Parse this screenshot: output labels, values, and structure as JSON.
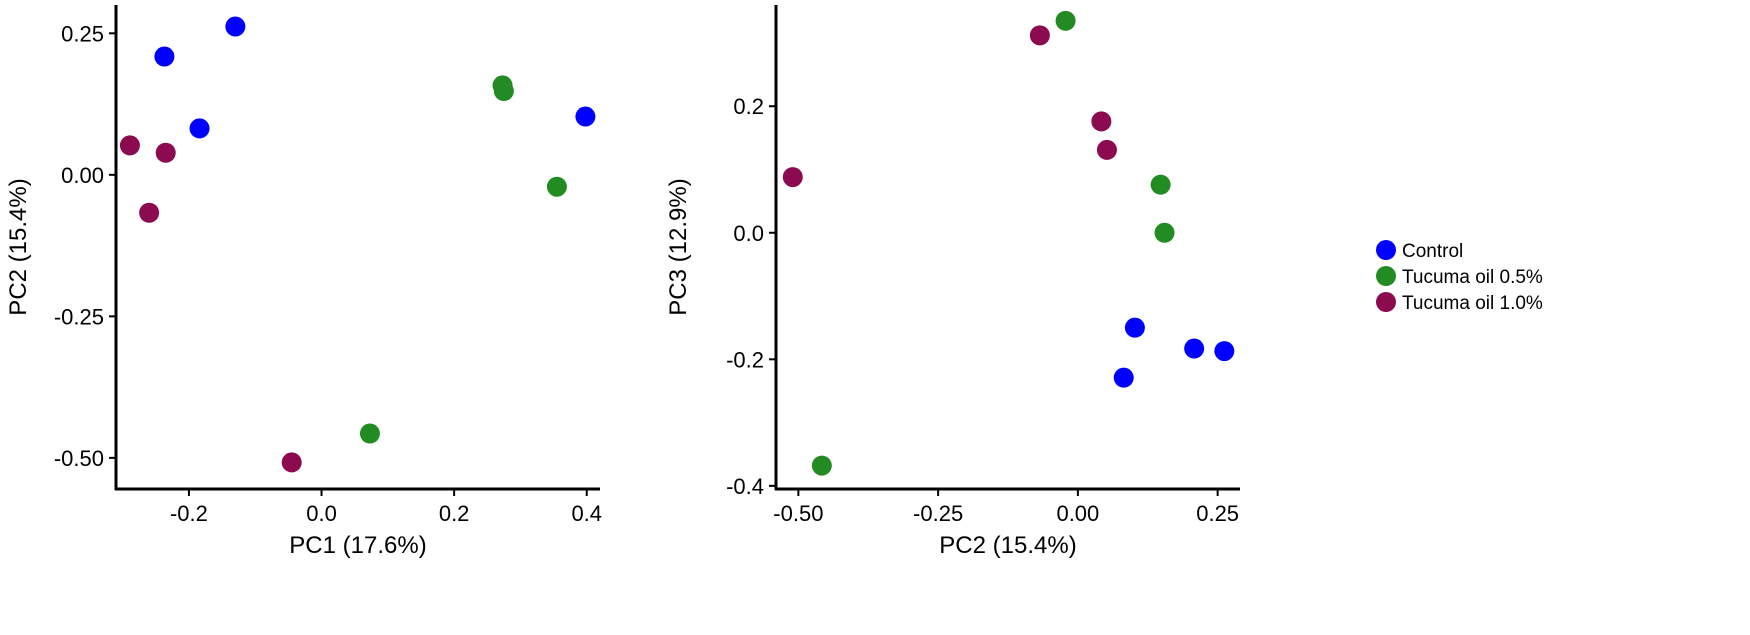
{
  "legend": {
    "placement": "right",
    "entries": [
      {
        "label": "Control",
        "color": "#0000ff"
      },
      {
        "label": "Tucuma oil 0.5%",
        "color": "#228b22"
      },
      {
        "label": "Tucuma oil 1.0%",
        "color": "#8b0a50"
      }
    ]
  },
  "chart_data": [
    {
      "type": "scatter",
      "title": "",
      "xlabel": "PC1 (17.6%)",
      "ylabel": "PC2 (15.4%)",
      "xlim": [
        -0.31,
        0.42
      ],
      "ylim": [
        -0.555,
        0.3
      ],
      "xticks": [
        -0.2,
        0.0,
        0.2,
        0.4
      ],
      "xtick_labels": [
        "-0.2",
        "0.0",
        "0.2",
        "0.4"
      ],
      "yticks": [
        -0.5,
        -0.25,
        0.0,
        0.25
      ],
      "ytick_labels": [
        "-0.50",
        "-0.25",
        "0.00",
        "0.25"
      ],
      "grid": false,
      "series": [
        {
          "name": "Control",
          "color": "#0000ff",
          "points": [
            [
              -0.13,
              0.262
            ],
            [
              -0.237,
              0.209
            ],
            [
              -0.184,
              0.082
            ],
            [
              0.398,
              0.103
            ]
          ]
        },
        {
          "name": "Tucuma oil 0.5%",
          "color": "#228b22",
          "points": [
            [
              0.273,
              0.158
            ],
            [
              0.275,
              0.148
            ],
            [
              0.355,
              -0.021
            ],
            [
              0.073,
              -0.457
            ]
          ]
        },
        {
          "name": "Tucuma oil 1.0%",
          "color": "#8b0a50",
          "points": [
            [
              -0.289,
              0.052
            ],
            [
              -0.235,
              0.039
            ],
            [
              -0.26,
              -0.067
            ],
            [
              -0.045,
              -0.508
            ]
          ]
        }
      ]
    },
    {
      "type": "scatter",
      "title": "",
      "xlabel": "PC2 (15.4%)",
      "ylabel": "PC3 (12.9%)",
      "xlim": [
        -0.54,
        0.29
      ],
      "ylim": [
        -0.405,
        0.36
      ],
      "xticks": [
        -0.5,
        -0.25,
        0.0,
        0.25
      ],
      "xtick_labels": [
        "-0.50",
        "-0.25",
        "0.00",
        "0.25"
      ],
      "yticks": [
        -0.4,
        -0.2,
        0.0,
        0.2
      ],
      "ytick_labels": [
        "-0.4",
        "-0.2",
        "0.0",
        "0.2"
      ],
      "grid": false,
      "series": [
        {
          "name": "Control",
          "color": "#0000ff",
          "points": [
            [
              0.102,
              -0.15
            ],
            [
              0.208,
              -0.183
            ],
            [
              0.262,
              -0.187
            ],
            [
              0.082,
              -0.229
            ]
          ]
        },
        {
          "name": "Tucuma oil 0.5%",
          "color": "#228b22",
          "points": [
            [
              -0.022,
              0.335
            ],
            [
              0.148,
              0.076
            ],
            [
              0.155,
              0.0
            ],
            [
              -0.458,
              -0.368
            ]
          ]
        },
        {
          "name": "Tucuma oil 1.0%",
          "color": "#8b0a50",
          "points": [
            [
              -0.068,
              0.312
            ],
            [
              0.042,
              0.176
            ],
            [
              0.052,
              0.131
            ],
            [
              -0.51,
              0.088
            ]
          ]
        }
      ]
    }
  ]
}
